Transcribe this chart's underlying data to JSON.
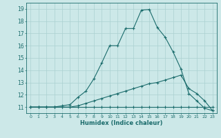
{
  "xlabel": "Humidex (Indice chaleur)",
  "bg_color": "#cce8e8",
  "line_color": "#1a6b6b",
  "grid_color": "#aad0d0",
  "xlim": [
    -0.5,
    23.5
  ],
  "ylim": [
    10.5,
    19.5
  ],
  "xticks": [
    0,
    1,
    2,
    3,
    4,
    5,
    6,
    7,
    8,
    9,
    10,
    11,
    12,
    13,
    14,
    15,
    16,
    17,
    18,
    19,
    20,
    21,
    22,
    23
  ],
  "yticks": [
    11,
    12,
    13,
    14,
    15,
    16,
    17,
    18,
    19
  ],
  "line1_x": [
    0,
    1,
    2,
    3,
    4,
    5,
    6,
    7,
    8,
    9,
    10,
    11,
    12,
    13,
    14,
    15,
    16,
    17,
    18,
    19,
    20,
    21,
    22,
    23
  ],
  "line1_y": [
    11,
    11,
    11,
    11,
    11,
    11,
    11,
    11,
    11,
    11,
    11,
    11,
    11,
    11,
    11,
    11,
    11,
    11,
    11,
    11,
    11,
    11,
    11,
    11
  ],
  "line2_x": [
    0,
    1,
    2,
    3,
    4,
    5,
    6,
    7,
    8,
    9,
    10,
    11,
    12,
    13,
    14,
    15,
    16,
    17,
    18,
    19,
    20,
    21,
    22,
    23
  ],
  "line2_y": [
    11,
    11,
    11,
    11,
    11.1,
    11.2,
    11.8,
    12.3,
    13.3,
    14.6,
    16.0,
    16.0,
    17.4,
    17.4,
    18.9,
    18.95,
    17.5,
    16.7,
    15.5,
    14.1,
    12.1,
    11.5,
    10.9,
    10.7
  ],
  "line3_x": [
    0,
    1,
    2,
    3,
    4,
    5,
    6,
    7,
    8,
    9,
    10,
    11,
    12,
    13,
    14,
    15,
    16,
    17,
    18,
    19,
    20,
    21,
    22,
    23
  ],
  "line3_y": [
    11,
    11,
    11,
    11,
    11,
    11,
    11.1,
    11.3,
    11.5,
    11.7,
    11.9,
    12.1,
    12.3,
    12.5,
    12.7,
    12.9,
    13.0,
    13.2,
    13.4,
    13.6,
    12.5,
    12.1,
    11.5,
    10.7
  ]
}
